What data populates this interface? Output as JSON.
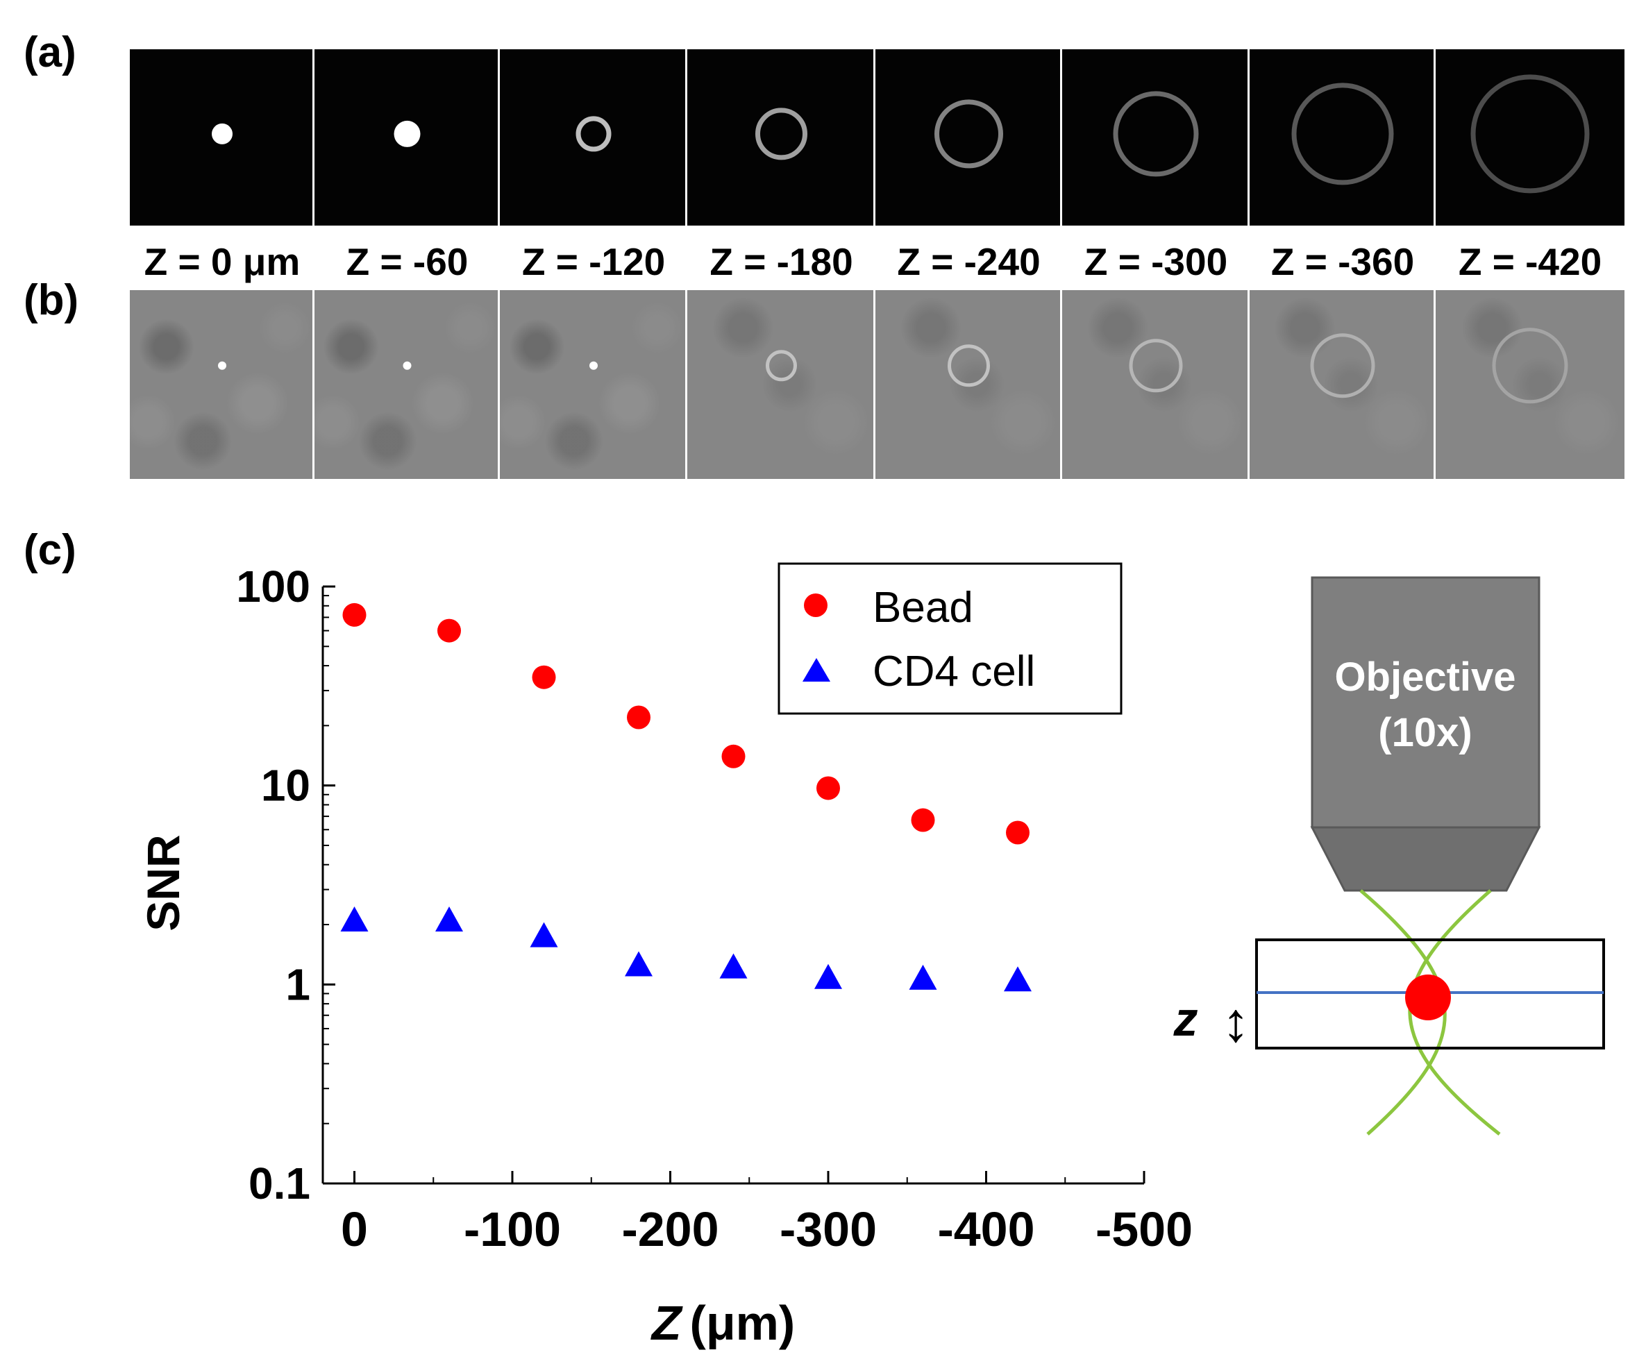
{
  "panels": {
    "a_label": "(a)",
    "b_label": "(b)",
    "c_label": "(c)"
  },
  "z_labels": [
    "Z = 0 μm",
    "Z = -60",
    "Z = -120",
    "Z = -180",
    "Z = -240",
    "Z = -300",
    "Z = -360",
    "Z = -420"
  ],
  "strip_a": [
    {
      "ring": false,
      "brightness": 1.0
    },
    {
      "ring": false,
      "brightness": 1.0
    },
    {
      "ring": true,
      "brightness": 0.75
    },
    {
      "ring": true,
      "brightness": 0.6
    },
    {
      "ring": true,
      "brightness": 0.45
    },
    {
      "ring": true,
      "brightness": 0.33
    },
    {
      "ring": true,
      "brightness": 0.24
    },
    {
      "ring": true,
      "brightness": 0.18
    }
  ],
  "strip_b": [
    {
      "ring": false,
      "brightness": 1.0
    },
    {
      "ring": false,
      "brightness": 1.0
    },
    {
      "ring": false,
      "brightness": 1.0
    },
    {
      "ring": true,
      "brightness": 0.45
    },
    {
      "ring": true,
      "brightness": 0.45
    },
    {
      "ring": true,
      "brightness": 0.35
    },
    {
      "ring": true,
      "brightness": 0.3
    },
    {
      "ring": true,
      "brightness": 0.2
    }
  ],
  "chart_data": {
    "type": "scatter",
    "title": "",
    "xlabel_italic": "Z",
    "xlabel_unit": "(μm)",
    "ylabel": "SNR",
    "yscale": "log",
    "xlim": [
      20,
      -500
    ],
    "ylim": [
      0.1,
      100
    ],
    "x_ticks": [
      0,
      -100,
      -200,
      -300,
      -400,
      -500
    ],
    "x_tick_labels": [
      "0",
      "-100",
      "-200",
      "-300",
      "-400",
      "-500"
    ],
    "y_ticks": [
      0.1,
      1,
      10,
      100
    ],
    "y_tick_labels": [
      "0.1",
      "1",
      "10",
      "100"
    ],
    "legend_position": "top-center",
    "series": [
      {
        "name": "Bead",
        "marker": "circle",
        "color": "#ff0000",
        "x": [
          0,
          -60,
          -120,
          -180,
          -240,
          -300,
          -360,
          -420
        ],
        "y": [
          72,
          60,
          35,
          22,
          14,
          9.7,
          6.7,
          5.8
        ]
      },
      {
        "name": "CD4 cell",
        "marker": "triangle",
        "color": "#0000ff",
        "x": [
          0,
          -60,
          -120,
          -180,
          -240,
          -300,
          -360,
          -420
        ],
        "y": [
          2.1,
          2.1,
          1.75,
          1.25,
          1.22,
          1.08,
          1.07,
          1.05
        ]
      }
    ]
  },
  "schematic": {
    "objective_line1": "Objective",
    "objective_line2": "(10x)",
    "z_symbol": "z",
    "arrow_symbol": "↕",
    "body_color": "#7f7f7f",
    "beam_color": "#8cc63f",
    "bead_color": "#ff0000",
    "focal_line_color": "#4472c4"
  }
}
